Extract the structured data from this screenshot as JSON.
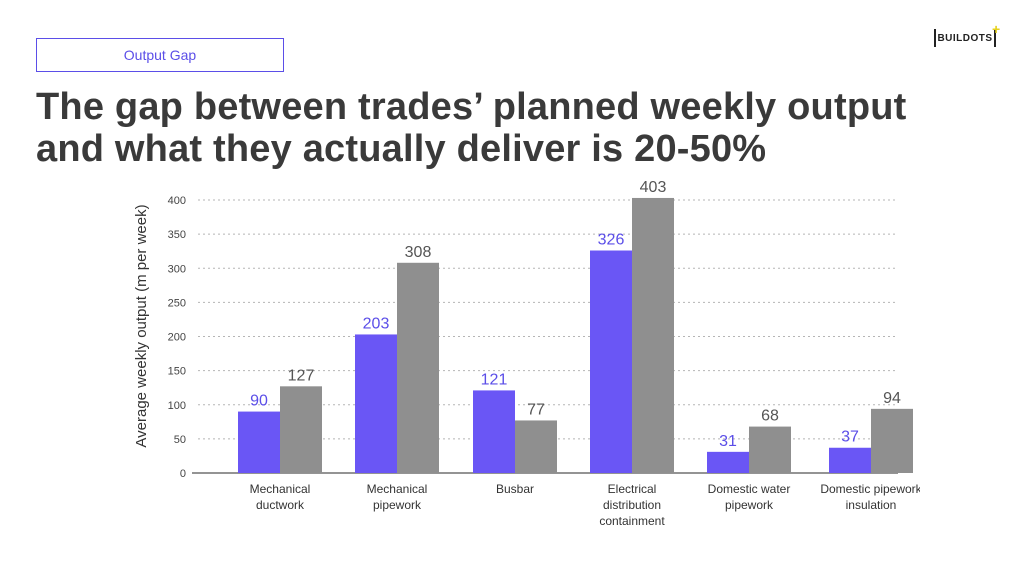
{
  "header": {
    "tag_label": "Output Gap",
    "title_line1": "The gap between trades’ planned weekly output",
    "title_line2": "and what they actually deliver is 20-50%",
    "logo_text": "BUILDOTS",
    "logo_plus": "+"
  },
  "colors": {
    "accent": "#5b4ee8",
    "actual_bar": "#6a56f5",
    "planned_bar": "#8f8f8f",
    "actual_label": "#5b4ee8",
    "planned_label": "#555555",
    "title": "#3a3a3a"
  },
  "chart_data": {
    "type": "bar",
    "title": "",
    "xlabel": "",
    "ylabel": "Average weekly output (m per week)",
    "ylim": [
      0,
      400
    ],
    "yticks": [
      0,
      50,
      100,
      150,
      200,
      250,
      300,
      350,
      400
    ],
    "grid": true,
    "categories": [
      [
        "Mechanical",
        "ductwork"
      ],
      [
        "Mechanical",
        "pipework"
      ],
      [
        "Busbar"
      ],
      [
        "Electrical",
        "distribution",
        "containment"
      ],
      [
        "Domestic water",
        "pipework"
      ],
      [
        "Domestic pipework",
        "insulation"
      ]
    ],
    "series": [
      {
        "values": [
          90,
          203,
          121,
          326,
          31,
          37
        ]
      },
      {
        "values": [
          127,
          308,
          77,
          403,
          68,
          94
        ]
      }
    ]
  }
}
